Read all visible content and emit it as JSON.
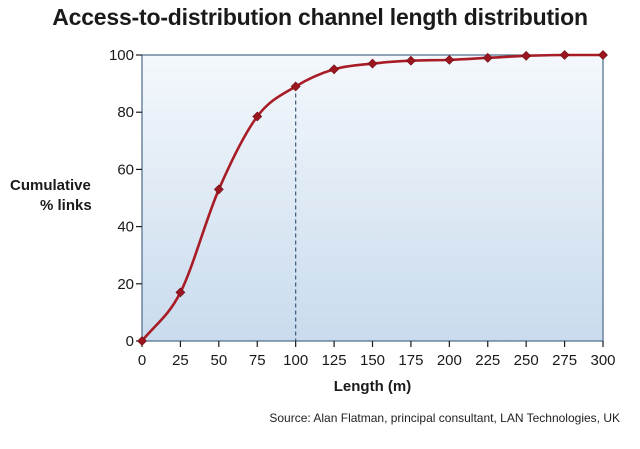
{
  "chart_data": {
    "type": "line",
    "title": "Access-to-distribution channel length distribution",
    "xlabel": "Length (m)",
    "ylabel": [
      "Cumulative",
      "% links"
    ],
    "x": [
      0,
      25,
      50,
      75,
      100,
      125,
      150,
      175,
      200,
      225,
      250,
      275,
      300
    ],
    "series": [
      {
        "values": [
          0,
          17,
          53,
          78.5,
          89,
          95,
          97,
          98,
          98.3,
          99,
          99.7,
          100,
          100
        ]
      }
    ],
    "xlim": [
      0,
      300
    ],
    "ylim": [
      0,
      100
    ],
    "xticks": [
      0,
      25,
      50,
      75,
      100,
      125,
      150,
      175,
      200,
      225,
      250,
      275,
      300
    ],
    "yticks": [
      0,
      20,
      40,
      60,
      80,
      100
    ],
    "reference_line_x": 100,
    "grid": false,
    "source": "Source: Alan Flatman, principal consultant, LAN Technologies, UK",
    "colors": {
      "line": "#a81c26",
      "marker": "#9c1620",
      "plot_bg_top": "#f4f8fc",
      "plot_bg_bottom": "#c9dbed",
      "border": "#4a6a8a",
      "reference": "#3a5a7a"
    }
  }
}
